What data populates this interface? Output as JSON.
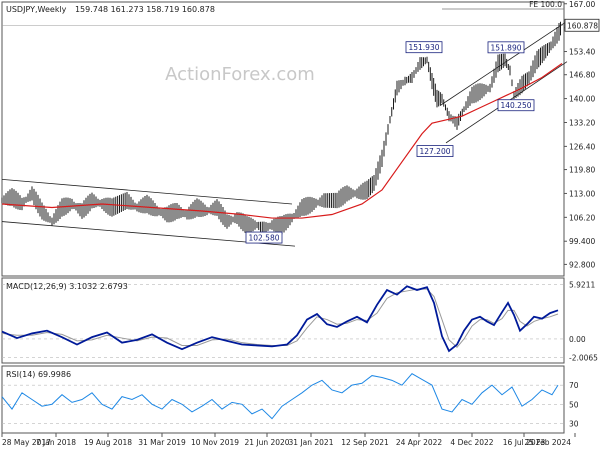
{
  "header": {
    "symbol": "USDJPY,Weekly",
    "ohlc": "159.748 161.273 158.719 160.878",
    "watermark": "ActionForex.com"
  },
  "chart_data": [
    {
      "type": "candlestick",
      "name": "price",
      "yticks": [
        92.8,
        99.4,
        106.2,
        113.0,
        119.8,
        126.4,
        133.2,
        140.0,
        146.8,
        153.4,
        160.2,
        167.0
      ],
      "ytick_labels": [
        "92.800",
        "99.400",
        "106.20",
        "113.00",
        "119.80",
        "126.40",
        "133.20",
        "140.00",
        "146.80",
        "153.40",
        "160.20",
        "167.00"
      ],
      "ylim": [
        89.5,
        167.5
      ],
      "current_price": 160.878,
      "current_price_label": "160.878",
      "fe_label": "FE 100.0",
      "fe_level": 165.5,
      "ma_color": "#d81b1b",
      "close_path": [
        [
          0,
          111
        ],
        [
          10,
          112
        ],
        [
          20,
          110
        ],
        [
          30,
          113
        ],
        [
          40,
          108
        ],
        [
          50,
          105
        ],
        [
          60,
          109
        ],
        [
          70,
          110
        ],
        [
          80,
          108
        ],
        [
          90,
          111
        ],
        [
          100,
          110
        ],
        [
          110,
          109
        ],
        [
          125,
          111
        ],
        [
          135,
          109
        ],
        [
          145,
          110
        ],
        [
          155,
          108
        ],
        [
          165,
          107
        ],
        [
          175,
          108
        ],
        [
          185,
          107
        ],
        [
          195,
          109
        ],
        [
          205,
          108
        ],
        [
          215,
          109
        ],
        [
          225,
          105
        ],
        [
          235,
          106
        ],
        [
          245,
          104
        ],
        [
          255,
          104
        ],
        [
          262,
          103
        ],
        [
          270,
          104
        ],
        [
          280,
          104
        ],
        [
          290,
          106
        ],
        [
          300,
          109
        ],
        [
          312,
          110
        ],
        [
          322,
          111
        ],
        [
          335,
          111
        ],
        [
          345,
          113
        ],
        [
          355,
          113
        ],
        [
          365,
          114
        ],
        [
          372,
          116
        ],
        [
          380,
          123
        ],
        [
          388,
          134
        ],
        [
          395,
          143
        ],
        [
          403,
          145
        ],
        [
          410,
          146
        ],
        [
          418,
          150
        ],
        [
          425,
          151
        ],
        [
          430,
          145
        ],
        [
          435,
          140
        ],
        [
          440,
          140
        ],
        [
          447,
          135
        ],
        [
          455,
          133
        ],
        [
          462,
          137
        ],
        [
          470,
          141
        ],
        [
          478,
          142
        ],
        [
          488,
          143
        ],
        [
          496,
          150
        ],
        [
          503,
          151
        ],
        [
          508,
          148
        ],
        [
          512,
          141
        ],
        [
          520,
          144
        ],
        [
          527,
          146
        ],
        [
          535,
          151
        ],
        [
          542,
          153
        ],
        [
          549,
          155
        ],
        [
          557,
          159
        ],
        [
          560,
          160.878
        ]
      ],
      "ma_path": [
        [
          0,
          110
        ],
        [
          50,
          109
        ],
        [
          100,
          110
        ],
        [
          150,
          109
        ],
        [
          200,
          108
        ],
        [
          240,
          107
        ],
        [
          270,
          106
        ],
        [
          300,
          106
        ],
        [
          330,
          107
        ],
        [
          360,
          110
        ],
        [
          380,
          114
        ],
        [
          400,
          122
        ],
        [
          420,
          130
        ],
        [
          430,
          133
        ],
        [
          445,
          134
        ],
        [
          460,
          135
        ],
        [
          475,
          137
        ],
        [
          490,
          139
        ],
        [
          505,
          141
        ],
        [
          520,
          143
        ],
        [
          540,
          146
        ],
        [
          560,
          150
        ]
      ],
      "channel_lines": [
        [
          [
            0,
            117
          ],
          [
            290,
            110
          ]
        ],
        [
          [
            0,
            105
          ],
          [
            293,
            98
          ]
        ],
        [
          [
            438,
            138
          ],
          [
            565,
            162
          ]
        ],
        [
          [
            444,
            127.4
          ],
          [
            565,
            150.5
          ]
        ]
      ],
      "annotations": [
        {
          "label": "102.580",
          "x": 262,
          "y": 102.58
        },
        {
          "label": "151.930",
          "x": 422,
          "y": 151.93
        },
        {
          "label": "151.890",
          "x": 504,
          "y": 151.89
        },
        {
          "label": "140.250",
          "x": 514,
          "y": 140.25
        },
        {
          "label": "127.200",
          "x": 433,
          "y": 127.2
        }
      ]
    },
    {
      "type": "line",
      "name": "macd",
      "title": "MACD(12,26,9) 3.1032 2.6793",
      "yticks": [
        5.9211,
        0.0,
        -2.0065
      ],
      "ytick_labels": [
        "5.9211",
        "0.00",
        "-2.0065"
      ],
      "ylim": [
        -2.6,
        6.6
      ],
      "macd_color": "#001a99",
      "signal_color": "#9a9a9a",
      "x": [
        0,
        15,
        30,
        45,
        60,
        75,
        90,
        105,
        120,
        135,
        150,
        165,
        180,
        195,
        210,
        225,
        240,
        255,
        270,
        285,
        295,
        305,
        315,
        325,
        335,
        345,
        355,
        365,
        375,
        385,
        395,
        405,
        415,
        425,
        432,
        440,
        447,
        455,
        462,
        470,
        478,
        485,
        492,
        500,
        506,
        512,
        518,
        525,
        532,
        540,
        548,
        556
      ],
      "macd": [
        0.8,
        0.1,
        0.6,
        0.9,
        0.2,
        -0.6,
        0.2,
        0.7,
        -0.4,
        -0.1,
        0.5,
        -0.4,
        -1.1,
        -0.4,
        0.2,
        -0.2,
        -0.6,
        -0.7,
        -0.8,
        -0.6,
        0.4,
        2.1,
        2.7,
        1.6,
        1.3,
        1.9,
        2.4,
        1.8,
        3.7,
        5.3,
        4.8,
        5.7,
        5.3,
        5.6,
        3.9,
        0.3,
        -1.3,
        -0.6,
        0.9,
        2.1,
        2.4,
        1.9,
        1.5,
        2.9,
        3.9,
        2.6,
        0.9,
        1.6,
        2.4,
        2.2,
        2.8,
        3.1
      ],
      "signal": [
        0.6,
        0.4,
        0.4,
        0.7,
        0.5,
        -0.2,
        -0.1,
        0.4,
        0.1,
        -0.2,
        0.2,
        0.1,
        -0.7,
        -0.7,
        -0.1,
        0.0,
        -0.4,
        -0.6,
        -0.7,
        -0.7,
        -0.2,
        1.2,
        2.4,
        2.1,
        1.6,
        1.7,
        2.1,
        2.0,
        2.8,
        4.4,
        5.0,
        5.2,
        5.4,
        5.4,
        4.6,
        2.1,
        -0.1,
        -0.9,
        0.0,
        1.4,
        2.1,
        2.1,
        1.7,
        2.2,
        3.1,
        3.1,
        1.9,
        1.4,
        1.9,
        2.2,
        2.4,
        2.7
      ]
    },
    {
      "type": "line",
      "name": "rsi",
      "title": "RSI(14) 69.9986",
      "yticks": [
        70,
        50,
        30
      ],
      "ytick_labels": [
        "70",
        "50",
        "30"
      ],
      "ylim": [
        20,
        90
      ],
      "rsi_color": "#1e88e5",
      "x": [
        0,
        10,
        20,
        30,
        40,
        50,
        60,
        70,
        80,
        90,
        100,
        110,
        120,
        130,
        140,
        150,
        160,
        170,
        180,
        190,
        200,
        210,
        220,
        230,
        240,
        250,
        260,
        270,
        280,
        290,
        300,
        310,
        320,
        330,
        340,
        350,
        360,
        370,
        380,
        390,
        400,
        410,
        420,
        430,
        440,
        450,
        460,
        470,
        480,
        490,
        500,
        510,
        520,
        530,
        540,
        550,
        556
      ],
      "rsi": [
        58,
        45,
        62,
        55,
        48,
        50,
        60,
        52,
        55,
        62,
        50,
        45,
        58,
        55,
        60,
        50,
        45,
        55,
        50,
        42,
        48,
        55,
        45,
        52,
        50,
        40,
        45,
        35,
        48,
        55,
        62,
        70,
        75,
        65,
        62,
        70,
        72,
        80,
        78,
        75,
        70,
        82,
        76,
        70,
        45,
        42,
        55,
        50,
        62,
        70,
        60,
        68,
        48,
        55,
        65,
        60,
        70
      ]
    }
  ],
  "xaxis": {
    "labels": [
      "28 May 2017",
      "7 Jan 2018",
      "19 Aug 2018",
      "31 Mar 2019",
      "10 Nov 2019",
      "21 Jun 2020",
      "31 Jan 2021",
      "12 Sep 2021",
      "24 Apr 2022",
      "4 Dec 2022",
      "16 Jul 2023",
      "25 Feb 2024"
    ],
    "positions": [
      0,
      54,
      106,
      160,
      213,
      265,
      309,
      363,
      417,
      470,
      522,
      573
    ]
  }
}
